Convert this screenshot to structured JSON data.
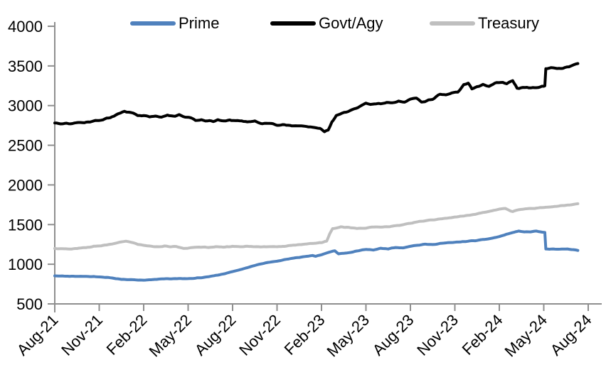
{
  "chart_data": {
    "type": "line",
    "title": "",
    "xlabel": "",
    "ylabel": "",
    "grid": "off",
    "legend_position": "top",
    "axis_color": "#8f8f8f",
    "text_color": "#000000",
    "y_axis": {
      "min": 500,
      "max": 4000,
      "tick_step": 500,
      "ticks": [
        500,
        1000,
        1500,
        2000,
        2500,
        3000,
        3500,
        4000
      ]
    },
    "x_axis": {
      "months_span": 36,
      "tick_every_months": 3,
      "tick_labels": [
        "Aug-21",
        "Nov-21",
        "Feb-22",
        "May-22",
        "Aug-22",
        "Nov-22",
        "Feb-23",
        "May-23",
        "Aug-23",
        "Nov-23",
        "Feb-24",
        "May-24",
        "Aug-24"
      ]
    },
    "series": [
      {
        "name": "Prime",
        "color": "#4f81bd",
        "points": [
          [
            0,
            855
          ],
          [
            0.5,
            851
          ],
          [
            1,
            849
          ],
          [
            2,
            847
          ],
          [
            3,
            842
          ],
          [
            3.5,
            834
          ],
          [
            4,
            822
          ],
          [
            4.5,
            811
          ],
          [
            5,
            805
          ],
          [
            6,
            799
          ],
          [
            6.5,
            806
          ],
          [
            7,
            813
          ],
          [
            7.5,
            817
          ],
          [
            8,
            819
          ],
          [
            9,
            819
          ],
          [
            9.5,
            825
          ],
          [
            10,
            833
          ],
          [
            10.5,
            846
          ],
          [
            11,
            863
          ],
          [
            11.5,
            883
          ],
          [
            12,
            906
          ],
          [
            12.5,
            931
          ],
          [
            13,
            958
          ],
          [
            13.5,
            984
          ],
          [
            14,
            1008
          ],
          [
            14.5,
            1026
          ],
          [
            15,
            1041
          ],
          [
            15.5,
            1057
          ],
          [
            16,
            1073
          ],
          [
            16.5,
            1087
          ],
          [
            17,
            1101
          ],
          [
            17.4,
            1110
          ],
          [
            17.6,
            1100
          ],
          [
            18,
            1120
          ],
          [
            18.5,
            1150
          ],
          [
            18.9,
            1170
          ],
          [
            19.15,
            1132
          ],
          [
            19.6,
            1140
          ],
          [
            20,
            1150
          ],
          [
            20.5,
            1170
          ],
          [
            21,
            1188
          ],
          [
            21.5,
            1180
          ],
          [
            22,
            1200
          ],
          [
            22.5,
            1195
          ],
          [
            23,
            1212
          ],
          [
            23.5,
            1207
          ],
          [
            24,
            1228
          ],
          [
            24.5,
            1240
          ],
          [
            25,
            1252
          ],
          [
            25.5,
            1248
          ],
          [
            26,
            1262
          ],
          [
            26.5,
            1270
          ],
          [
            27,
            1276
          ],
          [
            27.5,
            1284
          ],
          [
            28,
            1292
          ],
          [
            28.5,
            1300
          ],
          [
            29,
            1312
          ],
          [
            29.5,
            1328
          ],
          [
            30,
            1348
          ],
          [
            30.5,
            1378
          ],
          [
            31,
            1404
          ],
          [
            31.3,
            1418
          ],
          [
            31.7,
            1406
          ],
          [
            32.1,
            1410
          ],
          [
            32.5,
            1418
          ],
          [
            32.9,
            1404
          ],
          [
            33.07,
            1400
          ],
          [
            33.14,
            1192
          ],
          [
            34,
            1188
          ],
          [
            34.6,
            1192
          ],
          [
            35,
            1183
          ],
          [
            35.3,
            1174
          ]
        ]
      },
      {
        "name": "Govt/Agy",
        "color": "#000000",
        "points": [
          [
            0,
            2780
          ],
          [
            0.4,
            2766
          ],
          [
            0.8,
            2778
          ],
          [
            1.2,
            2772
          ],
          [
            1.6,
            2784
          ],
          [
            2,
            2790
          ],
          [
            2.5,
            2800
          ],
          [
            3,
            2814
          ],
          [
            3.5,
            2836
          ],
          [
            4,
            2868
          ],
          [
            4.4,
            2905
          ],
          [
            4.7,
            2933
          ],
          [
            5,
            2918
          ],
          [
            5.3,
            2902
          ],
          [
            5.6,
            2868
          ],
          [
            6,
            2876
          ],
          [
            6.4,
            2852
          ],
          [
            6.8,
            2872
          ],
          [
            7.2,
            2858
          ],
          [
            7.6,
            2874
          ],
          [
            8,
            2868
          ],
          [
            8.4,
            2880
          ],
          [
            8.8,
            2856
          ],
          [
            9.2,
            2846
          ],
          [
            9.5,
            2812
          ],
          [
            9.9,
            2824
          ],
          [
            10.3,
            2806
          ],
          [
            10.7,
            2800
          ],
          [
            11,
            2820
          ],
          [
            11.4,
            2802
          ],
          [
            11.8,
            2818
          ],
          [
            12.2,
            2806
          ],
          [
            12.6,
            2812
          ],
          [
            13,
            2794
          ],
          [
            13.5,
            2800
          ],
          [
            14,
            2774
          ],
          [
            14.5,
            2778
          ],
          [
            15,
            2758
          ],
          [
            15.5,
            2762
          ],
          [
            16,
            2744
          ],
          [
            16.5,
            2750
          ],
          [
            17,
            2734
          ],
          [
            17.5,
            2718
          ],
          [
            17.9,
            2708
          ],
          [
            18.2,
            2668
          ],
          [
            18.45,
            2692
          ],
          [
            18.7,
            2788
          ],
          [
            19,
            2872
          ],
          [
            19.4,
            2902
          ],
          [
            19.8,
            2928
          ],
          [
            20.2,
            2956
          ],
          [
            20.6,
            2990
          ],
          [
            21,
            3030
          ],
          [
            21.3,
            3012
          ],
          [
            21.7,
            3024
          ],
          [
            22,
            3020
          ],
          [
            22.4,
            3042
          ],
          [
            22.8,
            3032
          ],
          [
            23.2,
            3056
          ],
          [
            23.6,
            3046
          ],
          [
            24,
            3084
          ],
          [
            24.4,
            3098
          ],
          [
            24.75,
            3042
          ],
          [
            25.1,
            3060
          ],
          [
            25.5,
            3082
          ],
          [
            26,
            3144
          ],
          [
            26.4,
            3134
          ],
          [
            26.8,
            3162
          ],
          [
            27.2,
            3172
          ],
          [
            27.6,
            3260
          ],
          [
            27.9,
            3282
          ],
          [
            28.15,
            3206
          ],
          [
            28.5,
            3238
          ],
          [
            28.9,
            3262
          ],
          [
            29.3,
            3248
          ],
          [
            29.7,
            3282
          ],
          [
            30.1,
            3290
          ],
          [
            30.5,
            3278
          ],
          [
            30.9,
            3312
          ],
          [
            31.2,
            3218
          ],
          [
            31.6,
            3232
          ],
          [
            32,
            3222
          ],
          [
            32.5,
            3228
          ],
          [
            33,
            3240
          ],
          [
            33.07,
            3246
          ],
          [
            33.14,
            3462
          ],
          [
            33.5,
            3474
          ],
          [
            33.9,
            3466
          ],
          [
            34.3,
            3478
          ],
          [
            34.7,
            3490
          ],
          [
            35,
            3510
          ],
          [
            35.3,
            3530
          ]
        ]
      },
      {
        "name": "Treasury",
        "color": "#bfbfbf",
        "points": [
          [
            0,
            1200
          ],
          [
            0.5,
            1194
          ],
          [
            1,
            1192
          ],
          [
            1.5,
            1198
          ],
          [
            2,
            1210
          ],
          [
            2.5,
            1220
          ],
          [
            3,
            1232
          ],
          [
            3.5,
            1244
          ],
          [
            4,
            1258
          ],
          [
            4.5,
            1280
          ],
          [
            4.8,
            1292
          ],
          [
            5.2,
            1272
          ],
          [
            5.6,
            1252
          ],
          [
            6,
            1240
          ],
          [
            6.5,
            1228
          ],
          [
            7,
            1218
          ],
          [
            7.4,
            1230
          ],
          [
            7.8,
            1222
          ],
          [
            8.2,
            1224
          ],
          [
            8.7,
            1198
          ],
          [
            9.2,
            1208
          ],
          [
            9.6,
            1214
          ],
          [
            10,
            1216
          ],
          [
            10.5,
            1212
          ],
          [
            11,
            1220
          ],
          [
            11.5,
            1216
          ],
          [
            12,
            1224
          ],
          [
            12.5,
            1222
          ],
          [
            13,
            1227
          ],
          [
            13.5,
            1222
          ],
          [
            14,
            1219
          ],
          [
            14.5,
            1223
          ],
          [
            15,
            1221
          ],
          [
            15.5,
            1228
          ],
          [
            16,
            1238
          ],
          [
            16.5,
            1248
          ],
          [
            17,
            1258
          ],
          [
            17.5,
            1266
          ],
          [
            18,
            1272
          ],
          [
            18.35,
            1290
          ],
          [
            18.55,
            1380
          ],
          [
            18.75,
            1448
          ],
          [
            19,
            1456
          ],
          [
            19.3,
            1472
          ],
          [
            19.6,
            1465
          ],
          [
            20,
            1462
          ],
          [
            20.4,
            1452
          ],
          [
            21,
            1456
          ],
          [
            21.4,
            1468
          ],
          [
            22,
            1470
          ],
          [
            22.5,
            1474
          ],
          [
            23,
            1484
          ],
          [
            23.5,
            1498
          ],
          [
            24,
            1516
          ],
          [
            24.5,
            1534
          ],
          [
            25,
            1550
          ],
          [
            25.5,
            1560
          ],
          [
            26,
            1572
          ],
          [
            26.5,
            1582
          ],
          [
            27,
            1594
          ],
          [
            27.5,
            1606
          ],
          [
            28,
            1620
          ],
          [
            28.5,
            1636
          ],
          [
            29,
            1654
          ],
          [
            29.5,
            1674
          ],
          [
            30,
            1694
          ],
          [
            30.4,
            1703
          ],
          [
            30.9,
            1664
          ],
          [
            31.3,
            1684
          ],
          [
            31.7,
            1696
          ],
          [
            32,
            1700
          ],
          [
            32.5,
            1708
          ],
          [
            33,
            1716
          ],
          [
            33.5,
            1724
          ],
          [
            34,
            1734
          ],
          [
            34.5,
            1743
          ],
          [
            35,
            1753
          ],
          [
            35.3,
            1763
          ]
        ]
      }
    ]
  }
}
